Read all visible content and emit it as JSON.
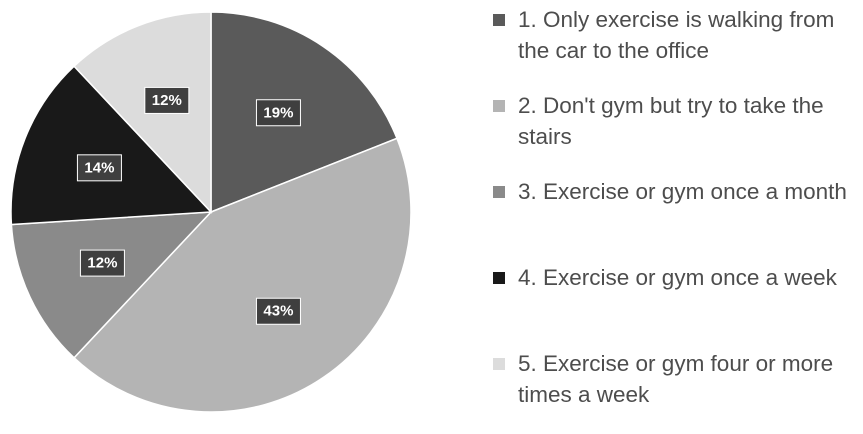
{
  "chart_data": {
    "type": "pie",
    "start_angle_deg": 0,
    "direction": "clockwise",
    "legend_position": "right",
    "slices": [
      {
        "label": "1. Only exercise is walking from the car to the office",
        "value": 19,
        "display": "19%",
        "color": "#5a5a5a"
      },
      {
        "label": "2. Don't gym but try to take the stairs",
        "value": 43,
        "display": "43%",
        "color": "#b4b4b4"
      },
      {
        "label": "3. Exercise or gym once a month",
        "value": 12,
        "display": "12%",
        "color": "#8a8a8a"
      },
      {
        "label": "4. Exercise or gym once a week",
        "value": 14,
        "display": "14%",
        "color": "#191919"
      },
      {
        "label": "5. Exercise or gym four or more times a week",
        "value": 12,
        "display": "12%",
        "color": "#dcdcdc"
      }
    ]
  }
}
